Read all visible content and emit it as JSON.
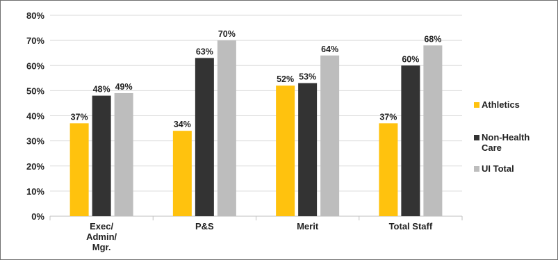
{
  "chart_data": {
    "type": "bar",
    "title": "",
    "xlabel": "",
    "ylabel": "",
    "ylim": [
      0,
      80
    ],
    "yticks": [
      0,
      10,
      20,
      30,
      40,
      50,
      60,
      70,
      80
    ],
    "ytick_suffix": "%",
    "grid": true,
    "legend_position": "right",
    "categories": [
      [
        "Exec/",
        "Admin/",
        "Mgr."
      ],
      [
        "P&S"
      ],
      [
        "Merit"
      ],
      [
        "Total Staff"
      ]
    ],
    "series": [
      {
        "name": "Athletics",
        "color": "#FFC20E",
        "values": [
          37,
          34,
          52,
          37
        ]
      },
      {
        "name": "Non-Health Care",
        "legend_lines": [
          "Non-Health",
          "Care"
        ],
        "color": "#333333",
        "values": [
          48,
          63,
          53,
          60
        ]
      },
      {
        "name": "UI Total",
        "color": "#BDBDBD",
        "values": [
          49,
          70,
          64,
          68
        ]
      }
    ],
    "value_labels": [
      [
        "37%",
        "34%",
        "52%",
        "37%"
      ],
      [
        "48%",
        "63%",
        "53%",
        "60%"
      ],
      [
        "49%",
        "70%",
        "64%",
        "68%"
      ]
    ]
  }
}
